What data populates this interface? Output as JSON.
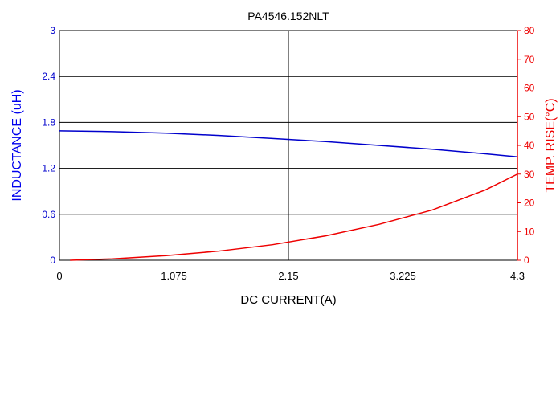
{
  "chart_data": {
    "type": "line",
    "title": "PA4546.152NLT",
    "xlabel": "DC CURRENT(A)",
    "ylabel_left": "INDUCTANCE (uH)",
    "ylabel_right": "TEMP. RISE(°C)",
    "xlim": [
      0,
      4.3
    ],
    "ylim_left": [
      0,
      3
    ],
    "ylim_right": [
      0,
      80
    ],
    "x_ticks": [
      "0",
      "1.075",
      "2.15",
      "3.225",
      "4.3"
    ],
    "y_left_ticks": [
      "0",
      "0.6",
      "1.2",
      "1.8",
      "2.4",
      "3"
    ],
    "y_right_ticks": [
      "0",
      "10",
      "20",
      "30",
      "40",
      "50",
      "60",
      "70",
      "80"
    ],
    "grid": true,
    "colors": {
      "inductance": "#0000cc",
      "temp": "#ee0000",
      "grid": "#000000"
    },
    "series": [
      {
        "axis": "left",
        "x": [
          0,
          0.5,
          1.0,
          1.5,
          2.0,
          2.5,
          3.0,
          3.5,
          4.0,
          4.3
        ],
        "values": [
          1.69,
          1.68,
          1.66,
          1.63,
          1.59,
          1.55,
          1.5,
          1.45,
          1.39,
          1.35
        ]
      },
      {
        "axis": "right",
        "x": [
          0.1,
          0.5,
          1.0,
          1.5,
          2.0,
          2.5,
          3.0,
          3.5,
          4.0,
          4.3
        ],
        "values": [
          0.0,
          0.5,
          1.6,
          3.2,
          5.4,
          8.5,
          12.5,
          17.5,
          24.5,
          30.0
        ]
      }
    ]
  }
}
